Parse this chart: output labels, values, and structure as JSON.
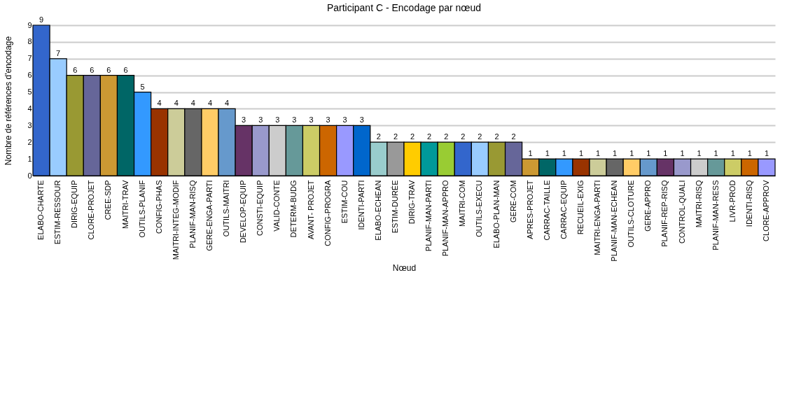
{
  "chart_data": {
    "type": "bar",
    "title": "Participant C - Encodage par nœud",
    "xlabel": "Nœud",
    "ylabel": "Nombre de références d'encodage",
    "categories": [
      "ELABO-CHARTE",
      "ESTIM-RESSOUR",
      "DIRIG-EQUIP",
      "CLORE-PROJET",
      "CREE-SDP",
      "MAITRI-TRAV",
      "OUTILS-PLANIF",
      "CONFIG-PHAS",
      "MAITRI-INTEG-MODIF",
      "PLANIF-MAN-RISQ",
      "GERE-ENGA-PARTI",
      "OUTILS-MAITRI",
      "DEVELOP-EQUIP",
      "CONSTI-EQUIP",
      "VALID-CONTE",
      "DETERM-BUDG",
      "AVANT- PROJET",
      "CONFIG-PROGRA",
      "ESTIM-COU",
      "IDENTI-PARTI",
      "ELABO-ECHEAN",
      "ESTIM-DURÉE",
      "DIRIG-TRAV",
      "PLANIF-MAN-PARTI",
      "PLANIF-MAN-APPRO",
      "MAITRI-COM",
      "OUTILS-EXECU",
      "ELABO-PLAN-MAN",
      "GERE-COM",
      "APRES-PROJET",
      "CARRAC-TAILLE",
      "CARRAC-EQUIP",
      "RECUEIL-EXIG",
      "MAITRI-ENGA-PARTI",
      "PLANIF-MAN-ECHEAN",
      "OUTILS-CLOTURE",
      "GERE-APPRO",
      "PLANIF-REP-RISQ",
      "CONTROL-QUALI",
      "MAITRI-RISQ",
      "PLANIF-MAN-RESS",
      "LIVR-PROD",
      "IDENTI-RISQ",
      "CLORE-APPROV"
    ],
    "values": [
      9,
      7,
      6,
      6,
      6,
      6,
      5,
      4,
      4,
      4,
      4,
      4,
      3,
      3,
      3,
      3,
      3,
      3,
      3,
      3,
      2,
      2,
      2,
      2,
      2,
      2,
      2,
      2,
      2,
      1,
      1,
      1,
      1,
      1,
      1,
      1,
      1,
      1,
      1,
      1,
      1,
      1,
      1,
      1
    ],
    "colors": [
      "#3366cc",
      "#99ccff",
      "#999933",
      "#666699",
      "#cc9933",
      "#006666",
      "#3399ff",
      "#993300",
      "#cccc99",
      "#666666",
      "#ffcc66",
      "#6699cc",
      "#663366",
      "#9999cc",
      "#cccccc",
      "#669999",
      "#cccc66",
      "#cc6600",
      "#9999ff",
      "#0066cc",
      "#99cccc",
      "#999999",
      "#ffcc00",
      "#009999",
      "#99cc33",
      "#3366cc",
      "#99ccff",
      "#999933",
      "#666699",
      "#cc9933",
      "#006666",
      "#3399ff",
      "#993300",
      "#cccc99",
      "#666666",
      "#ffcc66",
      "#6699cc",
      "#663366",
      "#9999cc",
      "#cccccc",
      "#669999",
      "#cccc66",
      "#cc6600",
      "#9999ff"
    ],
    "ylim": [
      0,
      9
    ],
    "yticks": [
      0,
      1,
      2,
      3,
      4,
      5,
      6,
      7,
      8,
      9
    ],
    "grid": "y",
    "data_labels": true
  }
}
